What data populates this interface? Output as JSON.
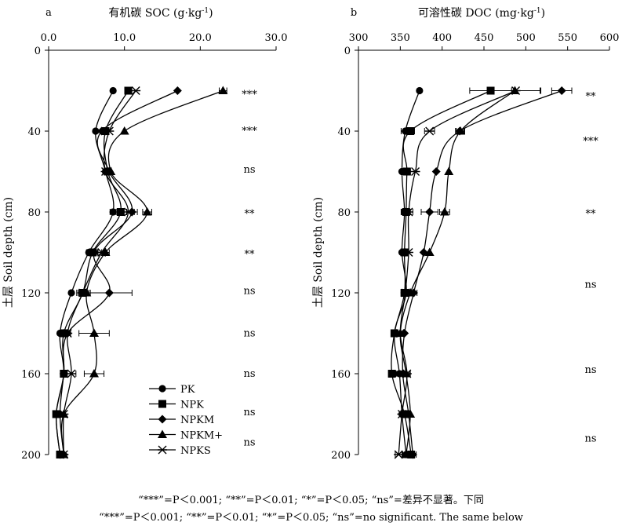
{
  "chart_data": [
    {
      "type": "line",
      "panel_label": "a",
      "title": "有机碳 SOC (g·kg",
      "title_sup": "-1",
      "title_close": ")",
      "ylabel": "土层 Soil depth (cm)",
      "x_axis_position": "top",
      "y_inverted": true,
      "xlim": [
        0,
        30
      ],
      "ylim": [
        0,
        200
      ],
      "x_ticks": [
        "0.0",
        "10.0",
        "20.0",
        "30.0"
      ],
      "x_tick_values": [
        0,
        10,
        20,
        30
      ],
      "y_ticks": [
        "0",
        "40",
        "80",
        "120",
        "160",
        "200"
      ],
      "y_tick_values": [
        0,
        40,
        80,
        120,
        160,
        200
      ],
      "depths": [
        20,
        40,
        60,
        80,
        100,
        120,
        140,
        160,
        180,
        200
      ],
      "series": [
        {
          "name": "PK",
          "marker": "circle",
          "values": [
            8.5,
            6.2,
            7.5,
            8.5,
            5.3,
            3.0,
            1.5,
            2.0,
            1.0,
            1.5
          ],
          "errors": [
            0,
            0,
            0,
            0.4,
            0.3,
            0,
            0,
            0,
            0,
            0
          ]
        },
        {
          "name": "NPK",
          "marker": "square",
          "values": [
            10.5,
            7.5,
            7.8,
            9.5,
            5.8,
            4.5,
            2.0,
            2.0,
            1.0,
            1.5
          ],
          "errors": [
            0,
            0.4,
            0,
            0.8,
            0.6,
            0.8,
            0,
            0,
            0,
            0
          ]
        },
        {
          "name": "NPKM",
          "marker": "diamond",
          "values": [
            17.0,
            7.0,
            8.0,
            11.0,
            6.0,
            8.0,
            2.5,
            2.0,
            1.5,
            2.0
          ],
          "errors": [
            0,
            0,
            0,
            0.7,
            0.5,
            3.0,
            0,
            0,
            0,
            0
          ]
        },
        {
          "name": "NPKM+",
          "marker": "triangle",
          "values": [
            23.0,
            10.0,
            8.2,
            13.0,
            7.5,
            5.0,
            6.0,
            6.0,
            2.0,
            2.0
          ],
          "errors": [
            0.5,
            0,
            0,
            0.6,
            0.5,
            0.5,
            2.0,
            1.3,
            0,
            0
          ]
        },
        {
          "name": "NPKS",
          "marker": "star",
          "values": [
            11.5,
            8.0,
            7.5,
            10.5,
            7.0,
            4.5,
            2.5,
            3.0,
            2.0,
            2.0
          ],
          "errors": [
            0,
            0,
            0,
            0.8,
            0.5,
            0.6,
            0.4,
            0.6,
            0,
            0
          ]
        }
      ],
      "significance": [
        {
          "depth": 22,
          "label": "***"
        },
        {
          "depth": 40,
          "label": "***"
        },
        {
          "depth": 59,
          "label": "ns"
        },
        {
          "depth": 81,
          "label": "**"
        },
        {
          "depth": 101,
          "label": "**"
        },
        {
          "depth": 119,
          "label": "ns"
        },
        {
          "depth": 140,
          "label": "ns"
        },
        {
          "depth": 160,
          "label": "ns"
        },
        {
          "depth": 179,
          "label": "ns"
        },
        {
          "depth": 194,
          "label": "ns"
        }
      ],
      "legend": {
        "placement": "bottom-right",
        "entries": [
          "PK",
          "NPK",
          "NPKM",
          "NPKM+",
          "NPKS"
        ]
      }
    },
    {
      "type": "line",
      "panel_label": "b",
      "title": "可溶性碳 DOC (mg·kg",
      "title_sup": "-1",
      "title_close": ")",
      "ylabel": "土层 Soil depth (cm)",
      "x_axis_position": "top",
      "y_inverted": true,
      "xlim": [
        300,
        600
      ],
      "ylim": [
        0,
        200
      ],
      "x_ticks": [
        "300",
        "350",
        "400",
        "450",
        "500",
        "550",
        "600"
      ],
      "x_tick_values": [
        300,
        350,
        400,
        450,
        500,
        550,
        600
      ],
      "y_ticks": [
        "0",
        "40",
        "80",
        "120",
        "160",
        "200"
      ],
      "y_tick_values": [
        0,
        40,
        80,
        120,
        160,
        200
      ],
      "depths": [
        20,
        40,
        60,
        80,
        100,
        120,
        140,
        160,
        180,
        200
      ],
      "series": [
        {
          "name": "PK",
          "marker": "circle",
          "values": [
            373,
            356,
            352,
            355,
            352,
            357,
            343,
            349,
            352,
            357
          ],
          "errors": [
            0,
            5,
            0,
            4,
            0,
            4,
            0,
            4,
            0,
            0
          ]
        },
        {
          "name": "NPK",
          "marker": "square",
          "values": [
            458,
            362,
            358,
            357,
            355,
            355,
            343,
            340,
            355,
            363
          ],
          "errors": [
            25,
            5,
            0,
            5,
            0,
            4,
            0,
            4,
            0,
            4
          ]
        },
        {
          "name": "NPKM",
          "marker": "diamond",
          "values": [
            543,
            421,
            393,
            385,
            378,
            366,
            355,
            353,
            360,
            365
          ],
          "errors": [
            12,
            5,
            0,
            10,
            0,
            4,
            0,
            4,
            0,
            4
          ]
        },
        {
          "name": "NPKM+",
          "marker": "triangle",
          "values": [
            487,
            422,
            408,
            403,
            385,
            362,
            350,
            357,
            362,
            357
          ],
          "errors": [
            30,
            5,
            0,
            6,
            0,
            4,
            0,
            4,
            0,
            4
          ]
        },
        {
          "name": "NPKS",
          "marker": "star",
          "values": [
            488,
            385,
            368,
            360,
            360,
            356,
            350,
            358,
            352,
            348
          ],
          "errors": [
            30,
            6,
            0,
            5,
            0,
            4,
            0,
            4,
            0,
            4
          ]
        }
      ],
      "significance": [
        {
          "depth": 23,
          "label": "**"
        },
        {
          "depth": 45,
          "label": "***"
        },
        {
          "depth": 81,
          "label": "**"
        },
        {
          "depth": 116,
          "label": "ns"
        },
        {
          "depth": 158,
          "label": "ns"
        },
        {
          "depth": 192,
          "label": "ns"
        }
      ]
    }
  ],
  "footnote": {
    "line1": "“***”=P＜0.001; “**”=P＜0.01; “*”=P＜0.05; “ns”=差异不显著。下同",
    "line2": "“***”=P＜0.001; “**”=P＜0.01; “*”=P＜0.05; “ns”=no significant. The same below"
  }
}
